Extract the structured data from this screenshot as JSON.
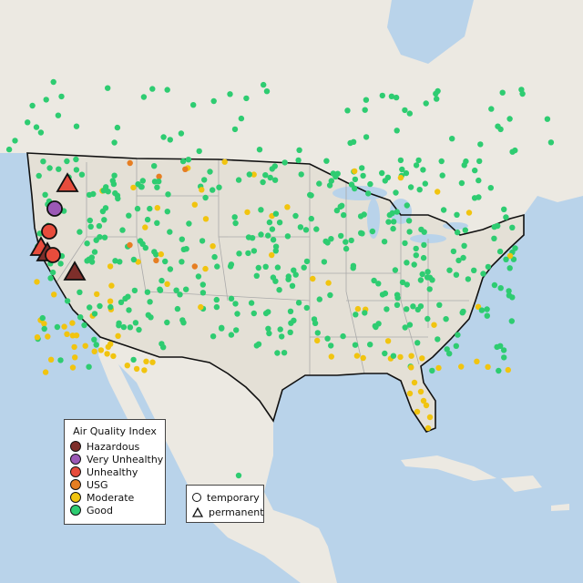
{
  "legend": {
    "title": "Air Quality Index",
    "categories": [
      {
        "label": "Hazardous",
        "color": "#7e2e2a"
      },
      {
        "label": "Very Unhealthy",
        "color": "#9b59b6"
      },
      {
        "label": "Unhealthy",
        "color": "#e74c3c"
      },
      {
        "label": "USG",
        "color": "#e67e22"
      },
      {
        "label": "Moderate",
        "color": "#f1c40f"
      },
      {
        "label": "Good",
        "color": "#2ecc71"
      }
    ],
    "types": [
      {
        "label": "temporary",
        "shape": "circle"
      },
      {
        "label": "permanent",
        "shape": "triangle"
      }
    ]
  },
  "colors": {
    "ocean": "#b9d3ea",
    "land": "#ece9e2",
    "us_land": "#e4e0d6",
    "state_line": "#aaaaaa",
    "border": "#111111"
  }
}
